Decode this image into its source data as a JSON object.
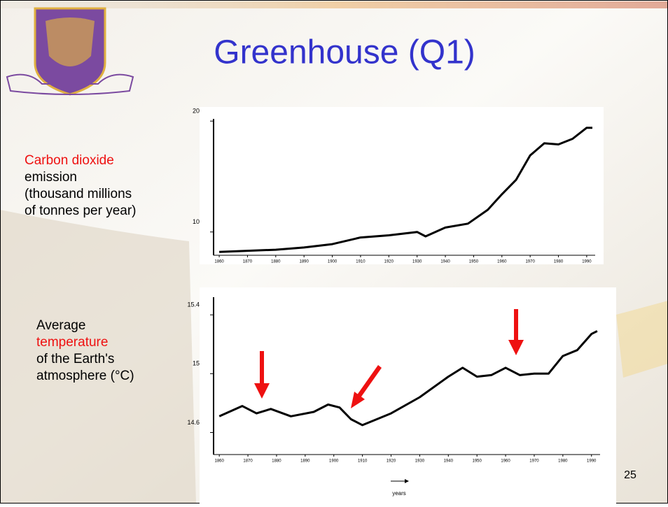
{
  "slide": {
    "title": "Greenhouse (Q1)",
    "page_number": "25"
  },
  "chart_data": [
    {
      "type": "line",
      "y_label": [
        "Carbon dioxide",
        "emission",
        "(thousand millions",
        "of tonnes per year)"
      ],
      "x": [
        1860,
        1880,
        1890,
        1900,
        1910,
        1920,
        1930,
        1933,
        1940,
        1948,
        1955,
        1960,
        1965,
        1970,
        1975,
        1980,
        1985,
        1990,
        1992
      ],
      "values": [
        8.2,
        8.4,
        8.6,
        8.9,
        9.5,
        9.7,
        10.0,
        9.6,
        10.4,
        10.75,
        12.0,
        13.4,
        14.7,
        16.9,
        18.0,
        17.9,
        18.4,
        19.4,
        19.4
      ],
      "color": "#000000",
      "xlim": [
        1858,
        1993
      ],
      "xticks": [
        1860,
        1870,
        1880,
        1890,
        1900,
        1910,
        1920,
        1930,
        1940,
        1950,
        1960,
        1970,
        1980,
        1990
      ],
      "ylim": [
        7.9,
        20.2
      ],
      "yticks": [
        10,
        20
      ]
    },
    {
      "type": "line",
      "y_label": [
        "Average",
        "temperature",
        "of the Earth's",
        "atmosphere (°C)"
      ],
      "x_label": "years",
      "x": [
        1860,
        1868,
        1873,
        1878,
        1885,
        1893,
        1898,
        1902,
        1906,
        1910,
        1915,
        1920,
        1930,
        1940,
        1945,
        1950,
        1955,
        1960,
        1965,
        1970,
        1975,
        1980,
        1985,
        1990,
        1992
      ],
      "values": [
        14.71,
        14.78,
        14.73,
        14.76,
        14.71,
        14.74,
        14.79,
        14.77,
        14.69,
        14.65,
        14.69,
        14.73,
        14.84,
        14.98,
        15.04,
        14.98,
        14.99,
        15.04,
        14.99,
        15.0,
        15.0,
        15.12,
        15.16,
        15.27,
        15.29
      ],
      "color": "#000000",
      "xlim": [
        1858,
        1993
      ],
      "xticks": [
        1860,
        1870,
        1880,
        1890,
        1900,
        1910,
        1920,
        1930,
        1940,
        1950,
        1960,
        1970,
        1980,
        1990
      ],
      "ylim": [
        14.45,
        15.52
      ],
      "yticks": [
        14.6,
        15.0,
        15.4
      ]
    }
  ]
}
